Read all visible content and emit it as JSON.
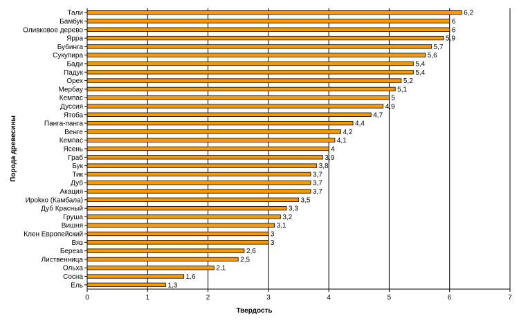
{
  "chart_data": {
    "type": "bar",
    "orientation": "horizontal",
    "title": "",
    "xlabel": "Твердость",
    "ylabel": "Порода древесины",
    "xlim": [
      0,
      7
    ],
    "xticks": [
      0,
      1,
      2,
      3,
      4,
      5,
      6,
      7
    ],
    "grid": "vertical",
    "legend": "none",
    "bar_color": "#F79A00",
    "bar_edge_color": "#000000",
    "categories": [
      "Тали",
      "Бамбук",
      "Оливковое дерево",
      "Ярра",
      "Бубинга",
      "Сукупира",
      "Бади",
      "Падук",
      "Орех",
      "Мербау",
      "Кемпас",
      "Дуссия",
      "Ятоба",
      "Панга-панга",
      "Венге",
      "Кемпас",
      "Ясень",
      "Граб",
      "Бук",
      "Тик",
      "Дуб",
      "Акация",
      "Ироkко (Камбала)",
      "Дуб Красный",
      "Груша",
      "Вишня",
      "Клен Европейский",
      "Вяз",
      "Береза",
      "Лиственница",
      "Ольха",
      "Сосна",
      "Ель"
    ],
    "values": [
      6.2,
      6,
      6,
      5.9,
      5.7,
      5.6,
      5.4,
      5.4,
      5.2,
      5.1,
      5,
      4.9,
      4.7,
      4.4,
      4.2,
      4.1,
      4,
      3.9,
      3.8,
      3.7,
      3.7,
      3.7,
      3.5,
      3.3,
      3.2,
      3.1,
      3,
      3,
      2.6,
      2.5,
      2.1,
      1.6,
      1.3
    ],
    "value_labels": [
      "6,2",
      "6",
      "6",
      "5,9",
      "5,7",
      "5,6",
      "5,4",
      "5,4",
      "5,2",
      "5,1",
      "5",
      "4,9",
      "4,7",
      "4,4",
      "4,2",
      "4,1",
      "4",
      "3,9",
      "3,8",
      "3,7",
      "3,7",
      "3,7",
      "3,5",
      "3,3",
      "3,2",
      "3,1",
      "3",
      "3",
      "2,6",
      "2,5",
      "2,1",
      "1,6",
      "1,3"
    ]
  }
}
